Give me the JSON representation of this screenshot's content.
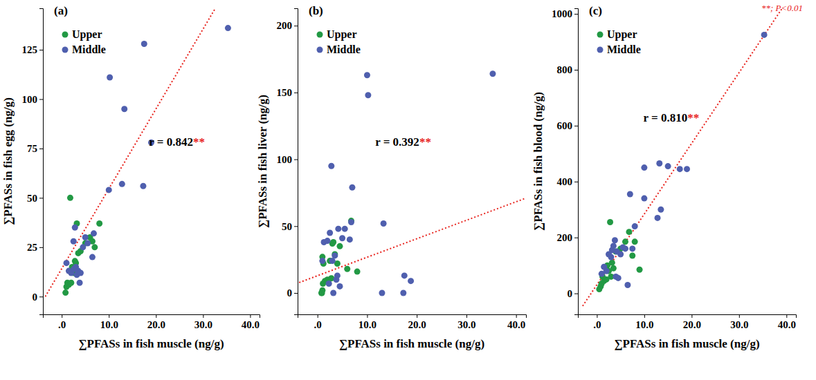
{
  "chart_data": [
    {
      "type": "scatter",
      "title": "(a)",
      "x_label": "∑PFASs in fish muscle (ng/g)",
      "y_label": "∑PFASs in fish egg (ng/g)",
      "xlim": [
        -4,
        42
      ],
      "xticks": [
        {
          "value": 0,
          "label": ".0"
        },
        {
          "value": 10,
          "label": "10.0"
        },
        {
          "value": 20,
          "label": "20.0"
        },
        {
          "value": 30,
          "label": "30.0"
        },
        {
          "value": 40,
          "label": "40.0"
        }
      ],
      "ylim": [
        -9,
        146
      ],
      "yticks": [
        0,
        25,
        50,
        75,
        100,
        125
      ],
      "legend": "upper left",
      "series": [
        {
          "name": "Upper",
          "color": "#229944",
          "marker": "circle",
          "x": [
            0.8,
            1.0,
            1.2,
            1.5,
            1.8,
            2.0,
            2.2,
            2.5,
            2.8,
            3.0,
            3.2,
            3.5,
            4.0,
            5.0,
            6.0,
            6.5,
            7.0,
            8.0
          ],
          "values": [
            2,
            5,
            7,
            6,
            50,
            7,
            15,
            12,
            18,
            17,
            37,
            22,
            23,
            27,
            30,
            28,
            25,
            37
          ]
        },
        {
          "name": "Middle",
          "color": "#4f5fae",
          "marker": "circle",
          "x": [
            1.0,
            1.5,
            2.0,
            2.5,
            2.6,
            2.8,
            3.0,
            3.2,
            3.5,
            3.8,
            4.0,
            4.5,
            5.0,
            5.5,
            6.5,
            6.8,
            10.0,
            10.2,
            12.8,
            13.3,
            17.3,
            17.5,
            19.0,
            35.3
          ],
          "values": [
            17,
            13,
            12,
            28,
            14,
            35,
            15,
            11,
            13,
            7,
            12,
            25,
            30,
            27,
            20,
            32,
            54,
            111,
            57,
            95,
            56,
            128,
            78,
            136
          ]
        }
      ],
      "fit_line": {
        "x": [
          -3.5,
          33.1
        ],
        "values": [
          0,
          148
        ],
        "color": "#e8221c",
        "line_style": "dotted"
      },
      "annotation": {
        "text": "r = 0.842",
        "suffix": "**",
        "color": "#e8221c"
      }
    },
    {
      "type": "scatter",
      "title": "(b)",
      "x_label": "∑PFASs in fish muscle (ng/g)",
      "y_label": "∑PFASs in fish liver  (ng/g)",
      "xlim": [
        -4,
        42
      ],
      "xticks": [
        {
          "value": 0,
          "label": ".0"
        },
        {
          "value": 10,
          "label": "10.0"
        },
        {
          "value": 20,
          "label": "20.0"
        },
        {
          "value": 30,
          "label": "30.0"
        },
        {
          "value": 40,
          "label": "40.0"
        }
      ],
      "ylim": [
        -16,
        213
      ],
      "yticks": [
        0,
        50,
        100,
        150,
        200
      ],
      "legend": "upper left",
      "series": [
        {
          "name": "Upper",
          "color": "#229944",
          "marker": "circle",
          "x": [
            0.8,
            0.9,
            1.0,
            1.0,
            1.1,
            1.2,
            1.5,
            2.0,
            2.5,
            2.8,
            3.0,
            3.2,
            3.5,
            4.0,
            4.5,
            6.0,
            6.8,
            8.0
          ],
          "values": [
            0,
            0,
            2,
            27,
            7,
            22,
            9,
            10,
            24,
            11,
            37,
            38,
            29,
            22,
            35,
            18,
            54,
            16
          ]
        },
        {
          "name": "Middle",
          "color": "#4f5fae",
          "marker": "circle",
          "x": [
            1.0,
            1.3,
            2.0,
            2.3,
            2.5,
            2.8,
            3.0,
            3.2,
            3.5,
            3.8,
            4.0,
            4.2,
            4.5,
            5.0,
            5.5,
            6.5,
            6.8,
            7.0,
            10.0,
            10.2,
            13.0,
            13.3,
            17.3,
            17.5,
            18.8,
            35.3
          ],
          "values": [
            24,
            38,
            39,
            7,
            45,
            95,
            24,
            0,
            28,
            10,
            13,
            48,
            5,
            41,
            48,
            40,
            53,
            79,
            163,
            148,
            0,
            52,
            0,
            13,
            9,
            164
          ]
        }
      ],
      "fit_line": {
        "x": [
          -5,
          42
        ],
        "values": [
          6,
          71
        ],
        "color": "#e8221c",
        "line_style": "dotted"
      },
      "annotation": {
        "text": "r = 0.392",
        "suffix": "**",
        "color": "#e8221c"
      }
    },
    {
      "type": "scatter",
      "title": "(c)",
      "x_label": "∑PFASs in fish muscle (ng/g)",
      "y_label": "∑PFASs in fish blood (ng/g)",
      "xlim": [
        -4,
        42
      ],
      "xticks": [
        {
          "value": 0,
          "label": ".0"
        },
        {
          "value": 10,
          "label": "10.0"
        },
        {
          "value": 20,
          "label": "20.0"
        },
        {
          "value": 30,
          "label": "30.0"
        },
        {
          "value": 40,
          "label": "40.0"
        }
      ],
      "ylim": [
        -75,
        1020
      ],
      "yticks": [
        0,
        200,
        400,
        600,
        800,
        1000
      ],
      "legend": "upper left",
      "series": [
        {
          "name": "Upper",
          "color": "#229944",
          "marker": "circle",
          "x": [
            0.5,
            0.8,
            1.0,
            1.2,
            1.5,
            2.0,
            2.2,
            2.5,
            2.8,
            3.0,
            3.2,
            3.5,
            4.0,
            5.0,
            6.0,
            6.8,
            7.5,
            8.0,
            9.0
          ],
          "values": [
            15,
            25,
            35,
            60,
            45,
            50,
            100,
            80,
            255,
            60,
            110,
            90,
            150,
            160,
            185,
            220,
            135,
            185,
            85
          ]
        },
        {
          "name": "Middle",
          "color": "#4f5fae",
          "marker": "circle",
          "x": [
            1.0,
            1.5,
            2.0,
            2.5,
            3.0,
            3.2,
            3.5,
            3.8,
            4.0,
            4.2,
            4.5,
            5.0,
            5.5,
            6.0,
            6.5,
            7.0,
            7.5,
            8.0,
            10.0,
            10.0,
            12.8,
            13.2,
            13.5,
            15.0,
            17.5,
            19.0,
            35.3
          ],
          "values": [
            70,
            95,
            80,
            140,
            130,
            155,
            170,
            190,
            60,
            150,
            55,
            140,
            165,
            160,
            30,
            355,
            160,
            240,
            450,
            340,
            270,
            465,
            300,
            455,
            445,
            445,
            925
          ]
        }
      ],
      "fit_line": {
        "x": [
          -3,
          39.3
        ],
        "values": [
          -45,
          1025
        ],
        "color": "#e8221c",
        "line_style": "dotted"
      },
      "annotation": {
        "text": "r = 0.810",
        "suffix": "**",
        "color": "#e8221c"
      },
      "note": {
        "text": "**; P<0.01",
        "color": "#e8221c"
      }
    }
  ]
}
